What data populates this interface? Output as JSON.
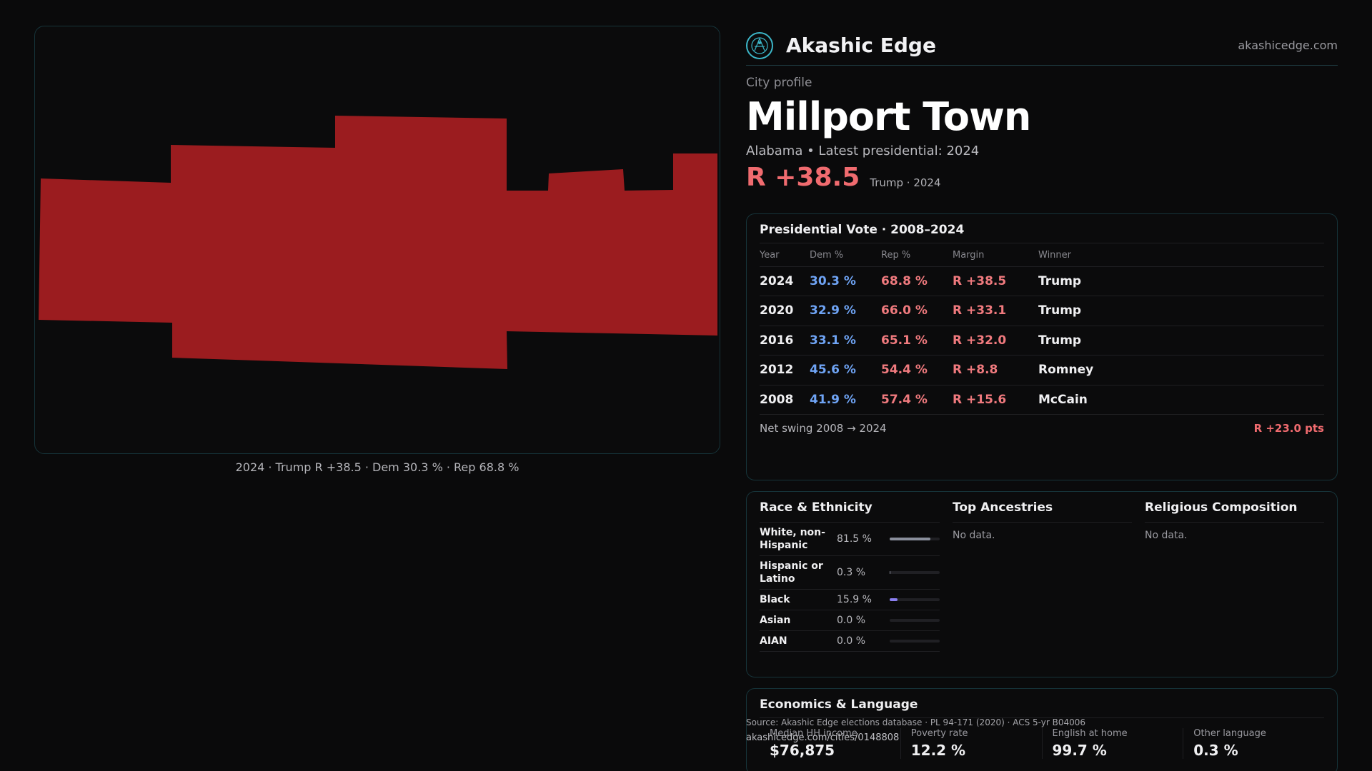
{
  "map": {
    "caption": "2024 · Trump R +38.5 · Dem 30.3 % · Rep 68.8 %",
    "fill_color": "#9b1c1f"
  },
  "brand": {
    "name": "Akashic Edge",
    "site": "akashicedge.com",
    "logo_icon": "network-globe-icon"
  },
  "profile": {
    "kicker": "City profile",
    "title": "Millport Town",
    "subtitle": "Alabama • Latest presidential: 2024",
    "margin": "R +38.5",
    "margin_sub": "Trump · 2024"
  },
  "vote": {
    "title": "Presidential Vote · 2008–2024",
    "headers": {
      "year": "Year",
      "dem": "Dem %",
      "rep": "Rep %",
      "margin": "Margin",
      "winner": "Winner"
    },
    "rows": [
      {
        "year": "2024",
        "dem": "30.3 %",
        "rep": "68.8 %",
        "margin": "R +38.5",
        "winner": "Trump"
      },
      {
        "year": "2020",
        "dem": "32.9 %",
        "rep": "66.0 %",
        "margin": "R +33.1",
        "winner": "Trump"
      },
      {
        "year": "2016",
        "dem": "33.1 %",
        "rep": "65.1 %",
        "margin": "R +32.0",
        "winner": "Trump"
      },
      {
        "year": "2012",
        "dem": "45.6 %",
        "rep": "54.4 %",
        "margin": "R +8.8",
        "winner": "Romney"
      },
      {
        "year": "2008",
        "dem": "41.9 %",
        "rep": "57.4 %",
        "margin": "R +15.6",
        "winner": "McCain"
      }
    ],
    "swing_label": "Net swing 2008 → 2024",
    "swing_value": "R +23.0 pts"
  },
  "race": {
    "title": "Race & Ethnicity",
    "rows": [
      {
        "label": "White, non-Hispanic",
        "value": "81.5 %",
        "fraction": 0.815,
        "color": "#8a8f9c"
      },
      {
        "label": "Hispanic or Latino",
        "value": "0.3 %",
        "fraction": 0.003,
        "color": "#8a8f9c"
      },
      {
        "label": "Black",
        "value": "15.9 %",
        "fraction": 0.159,
        "color": "#8a7ff0"
      },
      {
        "label": "Asian",
        "value": "0.0 %",
        "fraction": 0.0,
        "color": "#8a8f9c"
      },
      {
        "label": "AIAN",
        "value": "0.0 %",
        "fraction": 0.0,
        "color": "#8a8f9c"
      }
    ]
  },
  "ancestries": {
    "title": "Top Ancestries",
    "empty": "No data."
  },
  "religion": {
    "title": "Religious Composition",
    "empty": "No data."
  },
  "econ": {
    "title": "Economics & Language",
    "cells": [
      {
        "label": "Median HH income",
        "value": "$76,875"
      },
      {
        "label": "Poverty rate",
        "value": "12.2 %"
      },
      {
        "label": "English at home",
        "value": "99.7 %"
      },
      {
        "label": "Other language",
        "value": "0.3 %"
      }
    ]
  },
  "footer": {
    "source": "Source: Akashic Edge elections database · PL 94-171 (2020) · ACS 5-yr B04006",
    "url": "akashicedge.com/cities/0148808"
  }
}
